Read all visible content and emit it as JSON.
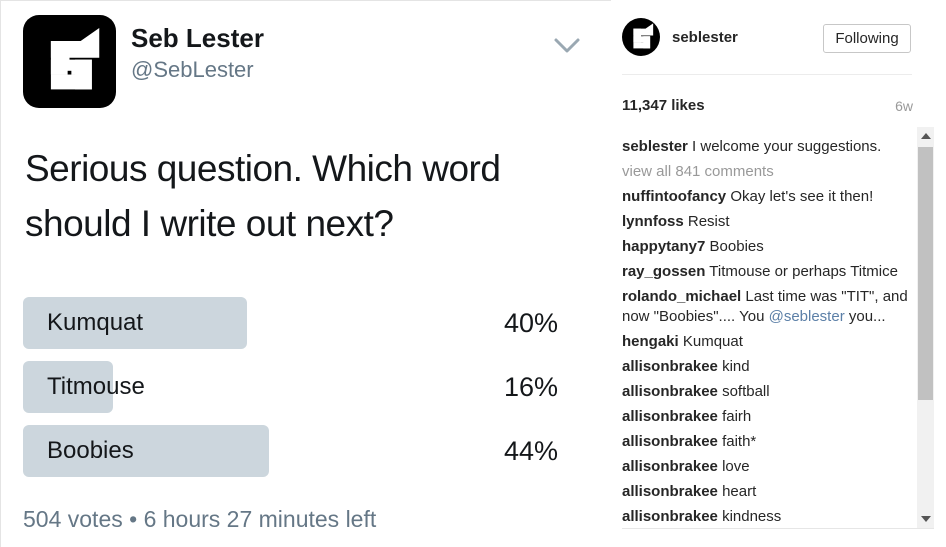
{
  "colors": {
    "bar": "#ccd6dd",
    "mention": "#5b7fa7",
    "text_dark": "#14171a",
    "muted": "#657786",
    "ig_text": "#262626",
    "ig_muted": "#999999"
  },
  "tweet": {
    "name": "Seb Lester",
    "handle": "@SebLester",
    "lines": [
      "Serious question. Which word",
      "should I write out next?"
    ],
    "footer": "504 votes • 6 hours 27 minutes left"
  },
  "poll": {
    "options": [
      {
        "label": "Kumquat",
        "pct": 40,
        "pct_label": "40%"
      },
      {
        "label": "Titmouse",
        "pct": 16,
        "pct_label": "16%"
      },
      {
        "label": "Boobies",
        "pct": 44,
        "pct_label": "44%"
      }
    ]
  },
  "panel": {
    "username": "seblester",
    "follow_label": "Following",
    "likes": "11,347 likes",
    "timestamp": "6w",
    "view_all": "view all 841 comments",
    "comments": [
      {
        "user": "seblester",
        "text": "I welcome your suggestions."
      },
      {
        "user": "nuffintoofancy",
        "text": "Okay let's see it then!"
      },
      {
        "user": "lynnfoss",
        "text": "Resist"
      },
      {
        "user": "happytany7",
        "text": "Boobies"
      },
      {
        "user": "ray_gossen",
        "text": "Titmouse or perhaps Titmice"
      },
      {
        "user": "rolando_michael",
        "text": "Last time was \"TIT\", and now \"Boobies\".... You ",
        "mention": "@seblester",
        "text2": " you..."
      },
      {
        "user": "hengaki",
        "text": "Kumquat"
      },
      {
        "user": "allisonbrakee",
        "text": "kind"
      },
      {
        "user": "allisonbrakee",
        "text": "softball"
      },
      {
        "user": "allisonbrakee",
        "text": "fairh"
      },
      {
        "user": "allisonbrakee",
        "text": "faith*"
      },
      {
        "user": "allisonbrakee",
        "text": "love"
      },
      {
        "user": "allisonbrakee",
        "text": "heart"
      },
      {
        "user": "allisonbrakee",
        "text": "kindness"
      }
    ]
  }
}
